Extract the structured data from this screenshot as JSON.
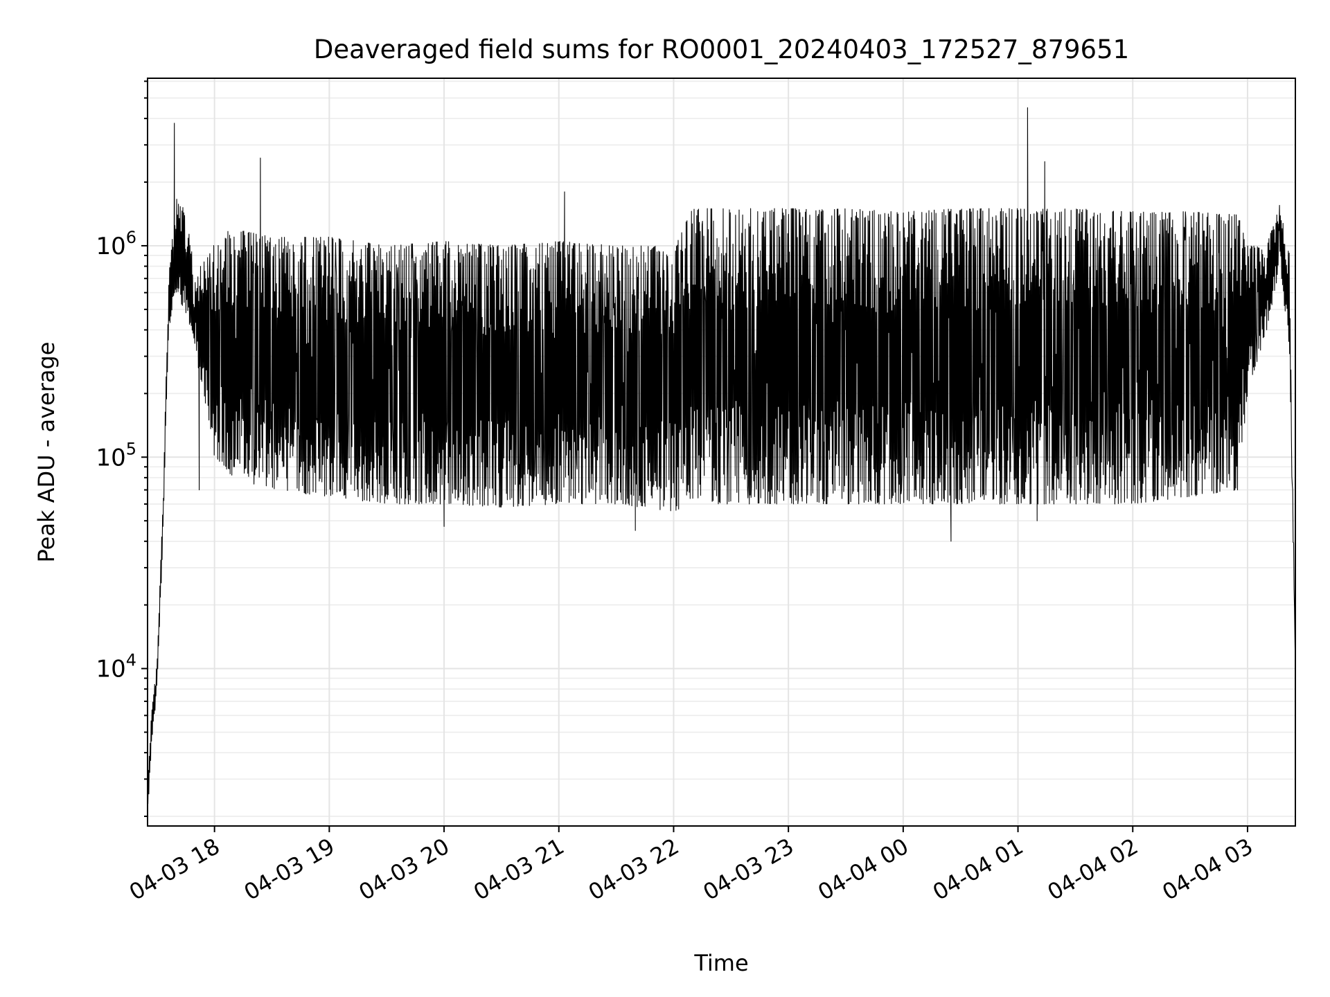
{
  "chart_data": {
    "type": "line",
    "title": "Deaveraged field sums for RO0001_20240403_172527_879651",
    "xlabel": "Time",
    "ylabel": "Peak ADU - average",
    "y_scale": "log",
    "ylim": [
      1800,
      6200000
    ],
    "xlim": [
      "2024-04-03 17:25",
      "2024-04-04 03:25"
    ],
    "grid": true,
    "series_color": "#000000",
    "x_ticks": [
      {
        "t": "2024-04-03 18:00",
        "label": "04-03 18"
      },
      {
        "t": "2024-04-03 19:00",
        "label": "04-03 19"
      },
      {
        "t": "2024-04-03 20:00",
        "label": "04-03 20"
      },
      {
        "t": "2024-04-03 21:00",
        "label": "04-03 21"
      },
      {
        "t": "2024-04-03 22:00",
        "label": "04-03 22"
      },
      {
        "t": "2024-04-03 23:00",
        "label": "04-03 23"
      },
      {
        "t": "2024-04-04 00:00",
        "label": "04-04 00"
      },
      {
        "t": "2024-04-04 01:00",
        "label": "04-04 01"
      },
      {
        "t": "2024-04-04 02:00",
        "label": "04-04 02"
      },
      {
        "t": "2024-04-04 03:00",
        "label": "04-04 03"
      }
    ],
    "y_ticks": [
      {
        "value": 10000,
        "base": "10",
        "exp": "4"
      },
      {
        "value": 100000,
        "base": "10",
        "exp": "5"
      },
      {
        "value": 1000000,
        "base": "10",
        "exp": "6"
      }
    ],
    "series": [
      {
        "envelope": {
          "time": [
            "2024-04-03 17:25",
            "2024-04-03 17:27",
            "2024-04-03 17:30",
            "2024-04-03 17:33",
            "2024-04-03 17:36",
            "2024-04-03 17:40",
            "2024-04-03 17:44",
            "2024-04-03 17:48",
            "2024-04-03 17:52",
            "2024-04-03 17:57",
            "2024-04-03 18:00",
            "2024-04-03 18:10",
            "2024-04-03 18:30",
            "2024-04-03 19:00",
            "2024-04-03 19:30",
            "2024-04-03 20:00",
            "2024-04-03 20:30",
            "2024-04-03 21:00",
            "2024-04-03 21:30",
            "2024-04-03 22:00",
            "2024-04-03 22:10",
            "2024-04-03 22:30",
            "2024-04-03 23:00",
            "2024-04-03 23:30",
            "2024-04-04 00:00",
            "2024-04-04 00:30",
            "2024-04-04 01:00",
            "2024-04-04 01:30",
            "2024-04-04 02:00",
            "2024-04-04 02:30",
            "2024-04-04 02:55",
            "2024-04-04 03:00",
            "2024-04-04 03:10",
            "2024-04-04 03:17",
            "2024-04-04 03:22",
            "2024-04-04 03:25"
          ],
          "upper": [
            3000,
            6000,
            11000,
            60000,
            700000,
            1700000,
            1500000,
            1000000,
            800000,
            900000,
            1100000,
            1200000,
            1100000,
            1100000,
            1000000,
            1050000,
            1000000,
            1050000,
            1000000,
            1000000,
            1500000,
            1500000,
            1500000,
            1500000,
            1450000,
            1500000,
            1500000,
            1500000,
            1450000,
            1450000,
            1400000,
            1000000,
            1000000,
            1600000,
            900000,
            10000
          ],
          "lower": [
            2000,
            4000,
            8000,
            40000,
            400000,
            600000,
            500000,
            400000,
            250000,
            150000,
            100000,
            80000,
            70000,
            65000,
            60000,
            60000,
            58000,
            60000,
            60000,
            55000,
            60000,
            60000,
            60000,
            60000,
            60000,
            60000,
            60000,
            60000,
            60000,
            65000,
            70000,
            200000,
            400000,
            800000,
            300000,
            10000
          ]
        },
        "spikes": [
          {
            "time": "2024-04-03 17:39",
            "value": 3800000
          },
          {
            "time": "2024-04-03 18:24",
            "value": 2600000
          },
          {
            "time": "2024-04-03 21:03",
            "value": 1800000
          },
          {
            "time": "2024-04-04 01:05",
            "value": 4500000
          },
          {
            "time": "2024-04-04 01:14",
            "value": 2500000
          }
        ],
        "dips": [
          {
            "time": "2024-04-03 17:52",
            "value": 70000
          },
          {
            "time": "2024-04-03 20:00",
            "value": 47000
          },
          {
            "time": "2024-04-03 21:40",
            "value": 45000
          },
          {
            "time": "2024-04-04 00:25",
            "value": 40000
          },
          {
            "time": "2024-04-04 01:10",
            "value": 50000
          }
        ]
      }
    ]
  }
}
